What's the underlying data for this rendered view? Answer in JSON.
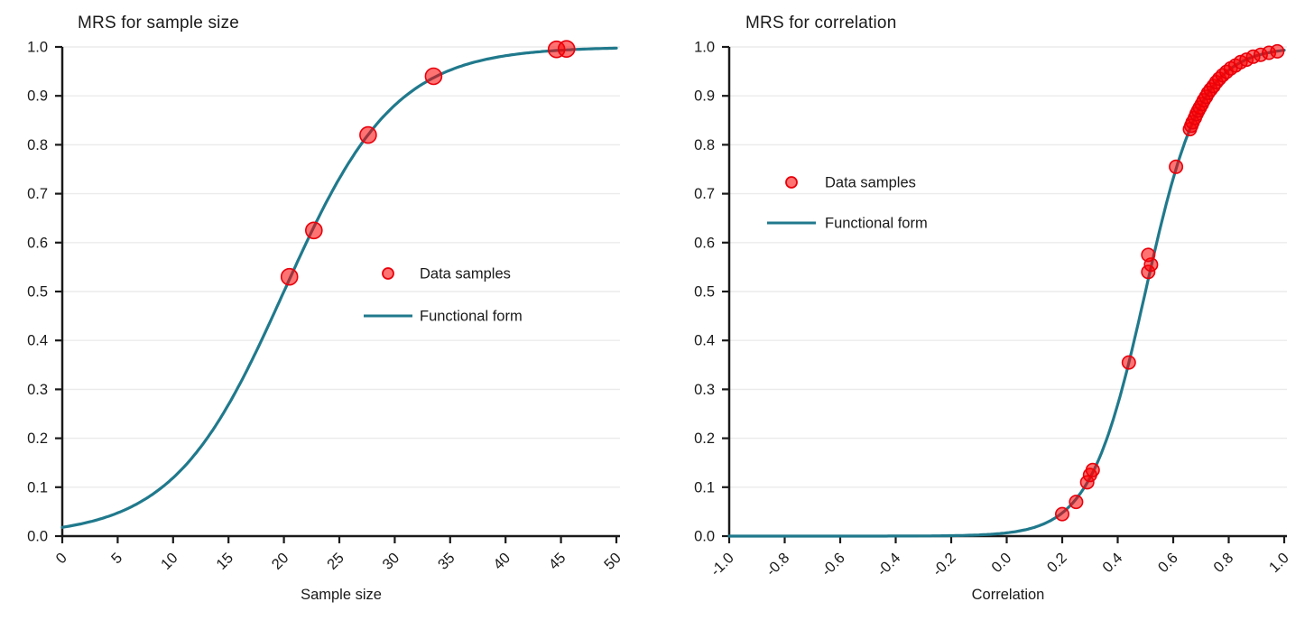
{
  "colors": {
    "background": "#ffffff",
    "curve": "#20798c",
    "marker_fill": "#ff0000",
    "marker_edge": "#e8000b",
    "grid": "#ebebeb",
    "axis": "#1a1a1a",
    "text": "#1a1a1a"
  },
  "chart_data": [
    {
      "type": "scatter",
      "title": "MRS for sample size",
      "xlabel": "Sample size",
      "ylabel": "",
      "xlim": [
        0,
        50
      ],
      "ylim": [
        0.0,
        1.0
      ],
      "grid": "horizontal-only",
      "xticks": [
        0,
        5,
        10,
        15,
        20,
        25,
        30,
        35,
        40,
        45,
        50
      ],
      "xtick_labels": [
        "0",
        "5",
        "10",
        "15",
        "20",
        "25",
        "30",
        "35",
        "40",
        "45",
        "50"
      ],
      "yticks": [
        0.0,
        0.1,
        0.2,
        0.3,
        0.4,
        0.5,
        0.6,
        0.7,
        0.8,
        0.9,
        1.0
      ],
      "ytick_labels": [
        "0.0",
        "0.1",
        "0.2",
        "0.3",
        "0.4",
        "0.5",
        "0.6",
        "0.7",
        "0.8",
        "0.9",
        "1.0"
      ],
      "legend": {
        "entries": [
          "Data samples",
          "Functional form"
        ],
        "position": "center-right"
      },
      "series": [
        {
          "name": "Data samples",
          "type": "scatter",
          "points": [
            [
              20.5,
              0.53
            ],
            [
              22.7,
              0.625
            ],
            [
              27.6,
              0.82
            ],
            [
              33.5,
              0.94
            ],
            [
              44.6,
              0.995
            ],
            [
              45.5,
              0.996
            ]
          ]
        },
        {
          "name": "Functional form",
          "type": "line",
          "form": "logistic y = 1/(1+exp(-(x-center)/scale))",
          "center": 20,
          "scale": 5
        }
      ]
    },
    {
      "type": "scatter",
      "title": "MRS for correlation",
      "xlabel": "Correlation",
      "ylabel": "",
      "xlim": [
        -1.0,
        1.0
      ],
      "ylim": [
        0.0,
        1.0
      ],
      "grid": "horizontal-only",
      "xticks": [
        -1.0,
        -0.8,
        -0.6,
        -0.4,
        -0.2,
        0.0,
        0.2,
        0.4,
        0.6,
        0.8,
        1.0
      ],
      "xtick_labels": [
        "-1.0",
        "-0.8",
        "-0.6",
        "-0.4",
        "-0.2",
        "0.0",
        "0.2",
        "0.4",
        "0.6",
        "0.8",
        "1.0"
      ],
      "yticks": [
        0.0,
        0.1,
        0.2,
        0.3,
        0.4,
        0.5,
        0.6,
        0.7,
        0.8,
        0.9,
        1.0
      ],
      "ytick_labels": [
        "0.0",
        "0.1",
        "0.2",
        "0.3",
        "0.4",
        "0.5",
        "0.6",
        "0.7",
        "0.8",
        "0.9",
        "1.0"
      ],
      "legend": {
        "entries": [
          "Data samples",
          "Functional form"
        ],
        "position": "upper-left"
      },
      "series": [
        {
          "name": "Data samples",
          "type": "scatter",
          "points": [
            [
              0.2,
              0.045
            ],
            [
              0.25,
              0.07
            ],
            [
              0.29,
              0.11
            ],
            [
              0.3,
              0.125
            ],
            [
              0.31,
              0.135
            ],
            [
              0.44,
              0.355
            ],
            [
              0.51,
              0.54
            ],
            [
              0.52,
              0.555
            ],
            [
              0.51,
              0.575
            ],
            [
              0.61,
              0.755
            ],
            [
              0.66,
              0.832
            ],
            [
              0.665,
              0.839
            ],
            [
              0.67,
              0.846
            ],
            [
              0.678,
              0.855
            ],
            [
              0.684,
              0.863
            ],
            [
              0.69,
              0.87
            ],
            [
              0.696,
              0.876
            ],
            [
              0.703,
              0.883
            ],
            [
              0.71,
              0.891
            ],
            [
              0.718,
              0.898
            ],
            [
              0.726,
              0.906
            ],
            [
              0.735,
              0.913
            ],
            [
              0.745,
              0.92
            ],
            [
              0.755,
              0.928
            ],
            [
              0.766,
              0.935
            ],
            [
              0.778,
              0.942
            ],
            [
              0.792,
              0.949
            ],
            [
              0.807,
              0.956
            ],
            [
              0.824,
              0.962
            ],
            [
              0.843,
              0.969
            ],
            [
              0.864,
              0.974
            ],
            [
              0.888,
              0.98
            ],
            [
              0.915,
              0.984
            ],
            [
              0.945,
              0.988
            ],
            [
              0.975,
              0.991
            ]
          ]
        },
        {
          "name": "Functional form",
          "type": "line",
          "form": "logistic y = 1/(1+exp(-(x-center)/scale))",
          "center": 0.5,
          "scale": 0.1
        }
      ]
    }
  ]
}
